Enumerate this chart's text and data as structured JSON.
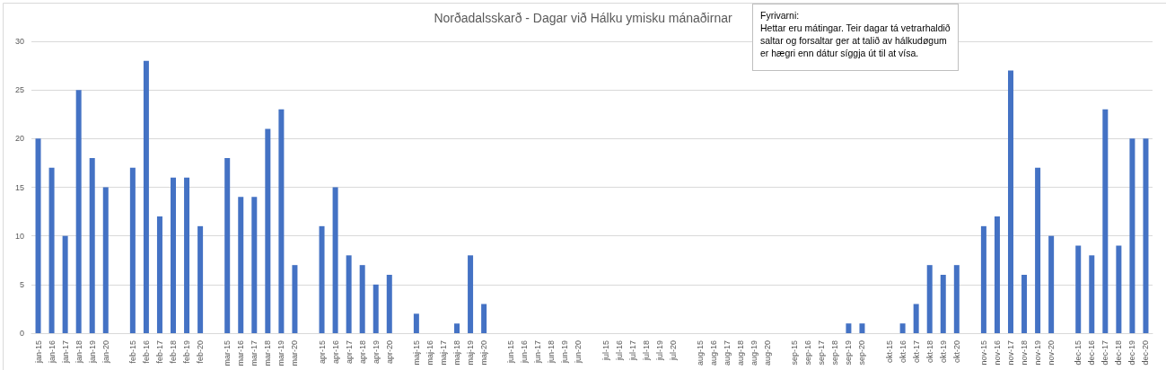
{
  "chart_data": {
    "type": "bar",
    "title": "Norðadalsskarð - Dagar við Hálku ymisku mánaðirnar",
    "annotations": [
      "Fyrivarni:",
      "Hettar eru mátingar. Teir dagar tá vetrarhaldið saltar og forsaltar ger at talið av hálkudøgum er hægri enn dátur síggja út til at vísa."
    ],
    "categories": [
      "jan-15",
      "jan-16",
      "jan-17",
      "jan-18",
      "jan-19",
      "jan-20",
      null,
      "feb-15",
      "feb-16",
      "feb-17",
      "feb-18",
      "feb-19",
      "feb-20",
      null,
      "mar-15",
      "mar-16",
      "mar-17",
      "mar-18",
      "mar-19",
      "mar-20",
      null,
      "apr-15",
      "apr-16",
      "apr-17",
      "apr-18",
      "apr-19",
      "apr-20",
      null,
      "maj-15",
      "maj-16",
      "maj-17",
      "maj-18",
      "maj-19",
      "maj-20",
      null,
      "jun-15",
      "jun-16",
      "jun-17",
      "jun-18",
      "jun-19",
      "jun-20",
      null,
      "jul-15",
      "jul-16",
      "jul-17",
      "jul-18",
      "jul-19",
      "jul-20",
      null,
      "aug-15",
      "aug-16",
      "aug-17",
      "aug-18",
      "aug-19",
      "aug-20",
      null,
      "sep-15",
      "sep-16",
      "sep-17",
      "sep-18",
      "sep-19",
      "sep-20",
      null,
      "okt-15",
      "okt-16",
      "okt-17",
      "okt-18",
      "okt-19",
      "okt-20",
      null,
      "nov-15",
      "nov-16",
      "nov-17",
      "nov-18",
      "nov-19",
      "nov-20",
      null,
      "dec-15",
      "dec-16",
      "dec-17",
      "dec-18",
      "dec-19",
      "dec-20"
    ],
    "values": [
      20,
      17,
      10,
      25,
      18,
      15,
      null,
      17,
      28,
      12,
      16,
      16,
      11,
      null,
      18,
      14,
      14,
      21,
      23,
      7,
      null,
      11,
      15,
      8,
      7,
      5,
      6,
      null,
      2,
      0,
      0,
      1,
      8,
      3,
      null,
      0,
      0,
      0,
      0,
      0,
      0,
      null,
      0,
      0,
      0,
      0,
      0,
      0,
      null,
      0,
      0,
      0,
      0,
      0,
      0,
      null,
      0,
      0,
      0,
      0,
      1,
      1,
      null,
      0,
      1,
      3,
      7,
      6,
      7,
      null,
      11,
      12,
      27,
      6,
      17,
      10,
      null,
      9,
      8,
      23,
      9,
      20,
      20
    ],
    "color": "#4472c4",
    "ylim": [
      0,
      30
    ],
    "yticks": [
      0,
      5,
      10,
      15,
      20,
      25,
      30
    ],
    "grid": "y"
  }
}
